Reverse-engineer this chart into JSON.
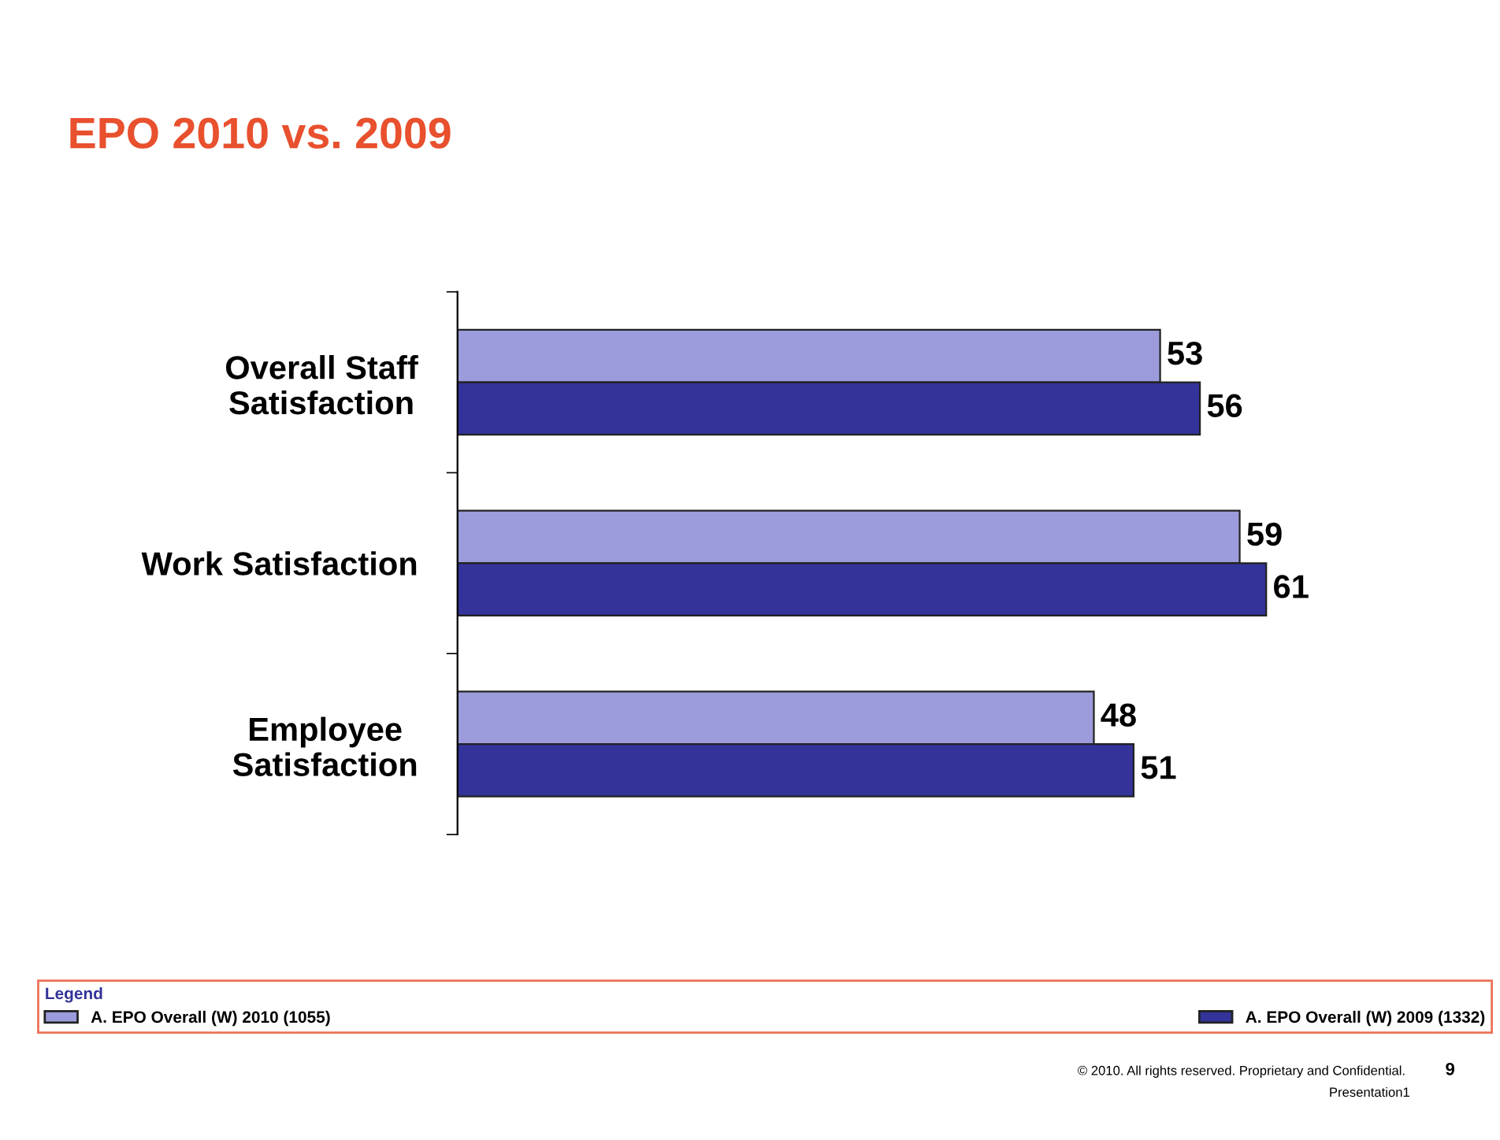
{
  "chart_data": {
    "type": "bar",
    "orientation": "horizontal",
    "title": "EPO 2010 vs. 2009",
    "categories": [
      "Overall Staff\nSatisfaction",
      "Work Satisfaction",
      "Employee\nSatisfaction"
    ],
    "series": [
      {
        "name": "A. EPO Overall (W) 2010 (1055)",
        "color": "#9c9cdc",
        "values": [
          53,
          59,
          48
        ]
      },
      {
        "name": "A. EPO Overall (W) 2009 (1332)",
        "color": "#333399",
        "values": [
          56,
          61,
          51
        ]
      }
    ],
    "data_labels": true,
    "legend": "bottom",
    "legend_title": "Legend",
    "grid": false,
    "annotations": [
      "© 2010. All rights reserved. Proprietary and Confidential.",
      "9",
      "Presentation1"
    ]
  }
}
